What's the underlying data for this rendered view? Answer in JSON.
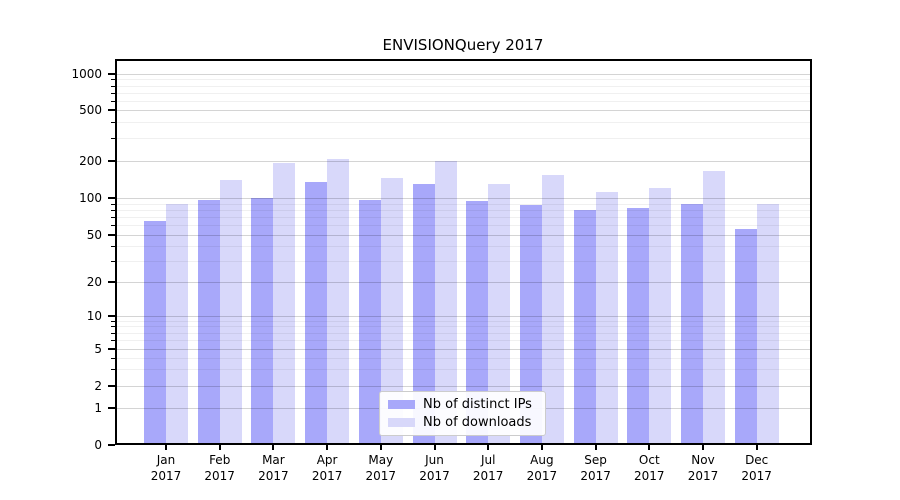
{
  "title": "ENVISIONQuery 2017",
  "chart_data": {
    "type": "bar",
    "title": "ENVISIONQuery 2017",
    "yscale": "symlog",
    "yticks": [
      0,
      1,
      2,
      5,
      10,
      20,
      50,
      100,
      200,
      500,
      1000
    ],
    "ylim": [
      0,
      1000
    ],
    "grid": true,
    "legend_position": "lower center",
    "x_tick_labels": [
      {
        "month": "Jan",
        "year": "2017"
      },
      {
        "month": "Feb",
        "year": "2017"
      },
      {
        "month": "Mar",
        "year": "2017"
      },
      {
        "month": "Apr",
        "year": "2017"
      },
      {
        "month": "May",
        "year": "2017"
      },
      {
        "month": "Jun",
        "year": "2017"
      },
      {
        "month": "Jul",
        "year": "2017"
      },
      {
        "month": "Aug",
        "year": "2017"
      },
      {
        "month": "Sep",
        "year": "2017"
      },
      {
        "month": "Oct",
        "year": "2017"
      },
      {
        "month": "Nov",
        "year": "2017"
      },
      {
        "month": "Dec",
        "year": "2017"
      }
    ],
    "series": [
      {
        "name": "Nb of distinct IPs",
        "color": "#a8a8fa",
        "values": [
          65,
          97,
          101,
          136,
          97,
          129,
          95,
          88,
          80,
          84,
          90,
          56
        ]
      },
      {
        "name": "Nb of downloads",
        "color": "#d8d8fa",
        "values": [
          90,
          140,
          192,
          206,
          146,
          197,
          130,
          152,
          112,
          121,
          166,
          90
        ]
      }
    ]
  }
}
